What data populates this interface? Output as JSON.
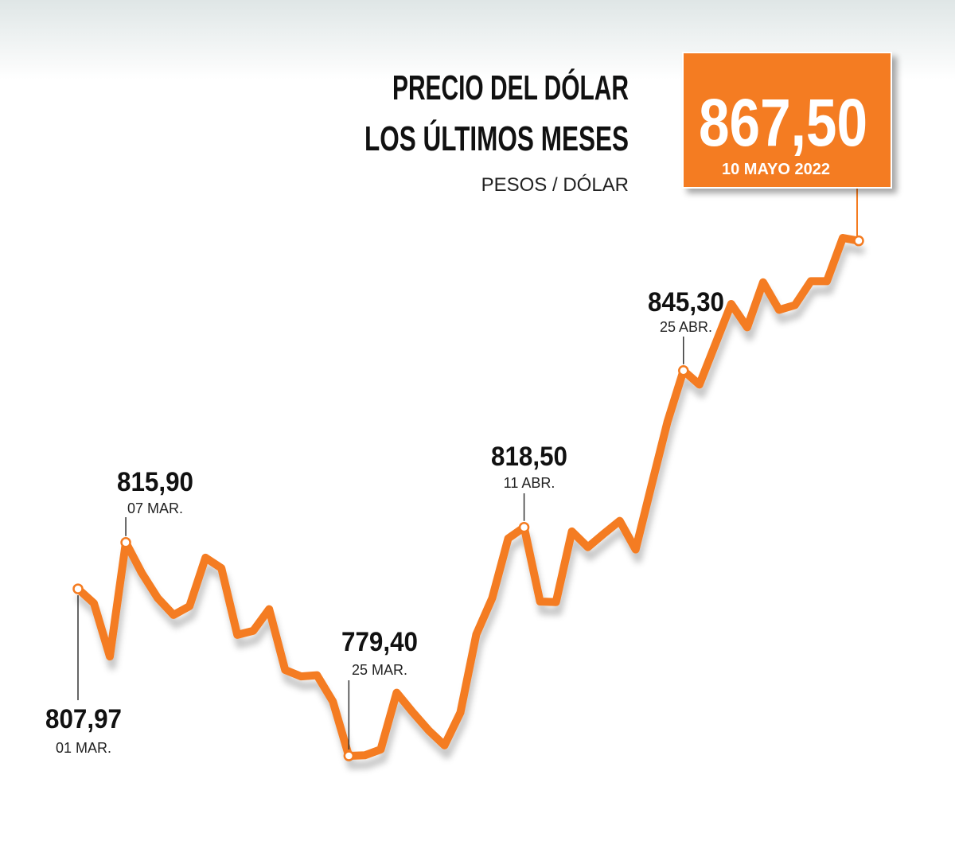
{
  "chart_data": {
    "type": "line",
    "title": [
      "PRECIO DEL DÓLAR",
      "LOS ÚLTIMOS MESES"
    ],
    "subtitle": "PESOS / DÓLAR",
    "color": "#f47b20",
    "categories": [
      "01 MAR.",
      null,
      null,
      "07 MAR.",
      null,
      null,
      null,
      null,
      null,
      null,
      null,
      null,
      null,
      null,
      null,
      null,
      null,
      "25 MAR.",
      null,
      null,
      null,
      null,
      null,
      null,
      null,
      null,
      null,
      null,
      "11 ABR.",
      null,
      null,
      null,
      null,
      null,
      null,
      null,
      null,
      null,
      "25 ABR.",
      null,
      null,
      null,
      null,
      null,
      null,
      null,
      null,
      null,
      null,
      "10 MAYO 2022"
    ],
    "values": [
      807.97,
      805.5,
      796.4,
      815.9,
      810.7,
      806.4,
      803.5,
      805.0,
      813.3,
      811.5,
      800.1,
      800.8,
      804.5,
      794.1,
      793.0,
      793.2,
      788.7,
      779.4,
      779.5,
      780.5,
      790.2,
      786.9,
      783.8,
      781.2,
      786.8,
      800.2,
      806.4,
      816.6,
      818.5,
      805.8,
      805.7,
      817.8,
      815.1,
      817.4,
      819.6,
      814.7,
      825.7,
      836.6,
      845.3,
      842.9,
      849.8,
      856.7,
      852.7,
      860.4,
      855.7,
      856.5,
      860.6,
      860.6,
      868.0,
      867.5
    ],
    "value_labels": [
      "807,97",
      null,
      null,
      "815,90",
      null,
      null,
      null,
      null,
      null,
      null,
      null,
      null,
      null,
      null,
      null,
      null,
      null,
      "779,40",
      null,
      null,
      null,
      null,
      null,
      null,
      null,
      null,
      null,
      null,
      "818,50",
      null,
      null,
      null,
      null,
      null,
      null,
      null,
      null,
      null,
      "845,30",
      null,
      null,
      null,
      null,
      null,
      null,
      null,
      null,
      null,
      null,
      "867,50"
    ]
  }
}
